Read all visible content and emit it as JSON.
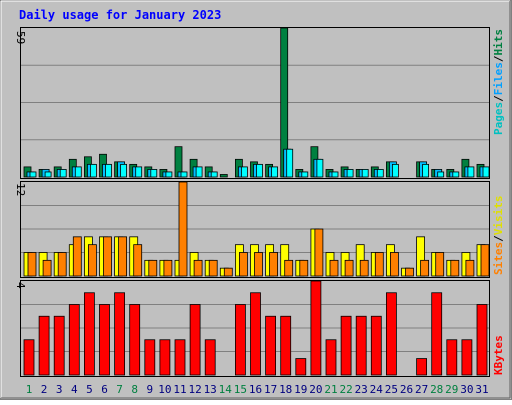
{
  "chart_data": [
    {
      "type": "bar",
      "title": "Daily usage for January 2023",
      "panel": "pages-files-hits",
      "ymax_label": "59",
      "ylim": [
        0,
        59
      ],
      "side_label": [
        "Pages",
        "Files",
        "Hits"
      ],
      "categories": [
        "1",
        "2",
        "3",
        "4",
        "5",
        "6",
        "7",
        "8",
        "9",
        "10",
        "11",
        "12",
        "13",
        "14",
        "15",
        "16",
        "17",
        "18",
        "19",
        "20",
        "21",
        "22",
        "23",
        "24",
        "25",
        "26",
        "27",
        "28",
        "29",
        "30",
        "31"
      ],
      "weekend_days": [
        "1",
        "7",
        "8",
        "14",
        "15",
        "21",
        "22",
        "28",
        "29"
      ],
      "series": [
        {
          "name": "Hits",
          "color": "#008040",
          "values": [
            4,
            3,
            4,
            7,
            8,
            9,
            6,
            5,
            4,
            3,
            12,
            7,
            4,
            1,
            7,
            6,
            5,
            59,
            3,
            12,
            3,
            4,
            3,
            4,
            6,
            0,
            6,
            3,
            3,
            7,
            5
          ]
        },
        {
          "name": "Files",
          "color": "#00c0ff",
          "values": [
            2,
            3,
            3,
            4,
            5,
            5,
            6,
            4,
            3,
            2,
            2,
            4,
            2,
            0,
            4,
            5,
            4,
            11,
            2,
            7,
            2,
            3,
            3,
            3,
            6,
            0,
            6,
            3,
            2,
            4,
            4
          ]
        },
        {
          "name": "Pages",
          "color": "#00ffff",
          "values": [
            2,
            2,
            3,
            4,
            5,
            5,
            5,
            4,
            3,
            2,
            2,
            4,
            2,
            0,
            4,
            5,
            4,
            11,
            2,
            7,
            2,
            3,
            3,
            3,
            5,
            0,
            5,
            2,
            2,
            4,
            4
          ]
        }
      ]
    },
    {
      "type": "bar",
      "panel": "visits-sites",
      "ymax_label": "12",
      "ylim": [
        0,
        12
      ],
      "side_label": [
        "Sites",
        "Visits"
      ],
      "categories": [
        "1",
        "2",
        "3",
        "4",
        "5",
        "6",
        "7",
        "8",
        "9",
        "10",
        "11",
        "12",
        "13",
        "14",
        "15",
        "16",
        "17",
        "18",
        "19",
        "20",
        "21",
        "22",
        "23",
        "24",
        "25",
        "26",
        "27",
        "28",
        "29",
        "30",
        "31"
      ],
      "series": [
        {
          "name": "Visits",
          "color": "#ffff00",
          "values": [
            3,
            3,
            3,
            4,
            5,
            5,
            5,
            5,
            2,
            2,
            2,
            3,
            2,
            1,
            4,
            4,
            4,
            4,
            2,
            6,
            3,
            3,
            4,
            3,
            4,
            1,
            5,
            3,
            2,
            3,
            4
          ]
        },
        {
          "name": "Sites",
          "color": "#ff8000",
          "values": [
            3,
            2,
            3,
            5,
            4,
            5,
            5,
            4,
            2,
            2,
            12,
            2,
            2,
            1,
            3,
            3,
            3,
            2,
            2,
            6,
            2,
            2,
            2,
            3,
            3,
            1,
            2,
            3,
            2,
            2,
            4
          ]
        }
      ]
    },
    {
      "type": "bar",
      "panel": "kbytes",
      "ymax_label": "4",
      "ylim": [
        0,
        4
      ],
      "side_label": [
        "KBytes"
      ],
      "categories": [
        "1",
        "2",
        "3",
        "4",
        "5",
        "6",
        "7",
        "8",
        "9",
        "10",
        "11",
        "12",
        "13",
        "14",
        "15",
        "16",
        "17",
        "18",
        "19",
        "20",
        "21",
        "22",
        "23",
        "24",
        "25",
        "26",
        "27",
        "28",
        "29",
        "30",
        "31"
      ],
      "series": [
        {
          "name": "KBytes",
          "color": "#ff0000",
          "values": [
            1.5,
            2.5,
            2.5,
            3,
            3.5,
            3,
            3.5,
            3,
            1.5,
            1.5,
            1.5,
            3,
            1.5,
            0,
            3,
            3.5,
            2.5,
            2.5,
            0.7,
            4,
            1.5,
            2.5,
            2.5,
            2.5,
            3.5,
            0,
            0.7,
            3.5,
            1.5,
            1.5,
            3
          ]
        }
      ]
    }
  ],
  "colors": {
    "background": "#c0c0c0",
    "grid": "#808080",
    "title": "#0000ff",
    "day_normal": "#000080",
    "day_weekend": "#008040"
  }
}
